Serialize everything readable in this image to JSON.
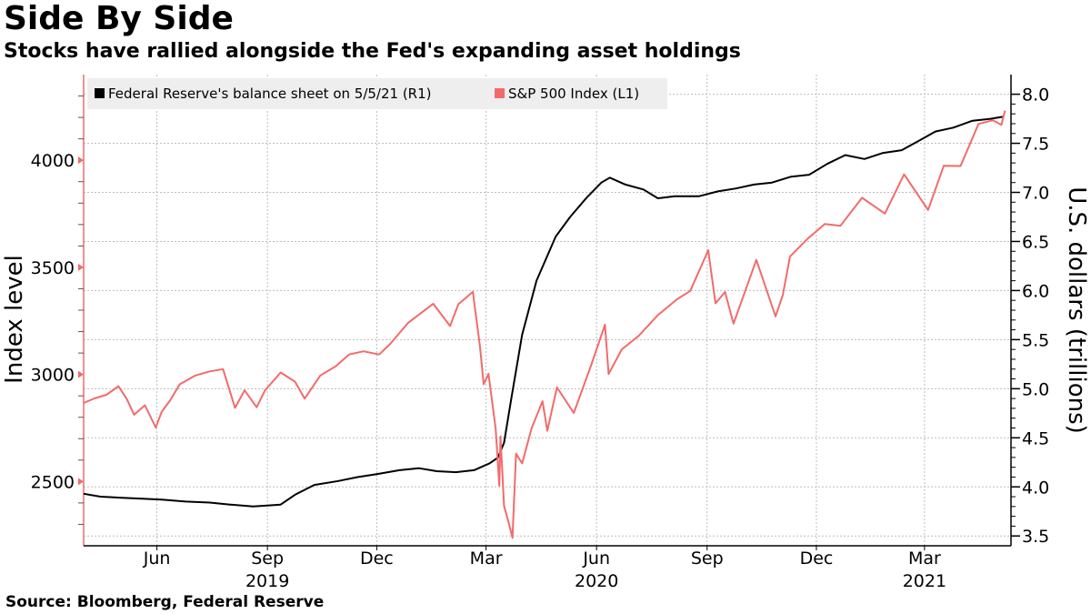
{
  "title": "Side By Side",
  "subtitle": "Stocks have rallied alongside the Fed's expanding asset holdings",
  "source": "Source: Bloomberg, Federal Reserve",
  "colors": {
    "sp500": "#f26b6b",
    "fed": "#000000",
    "grid": "#bdbdbd",
    "legend_bg": "#eeeeee"
  },
  "chart_data": {
    "type": "line",
    "left_axis": {
      "label": "Index level",
      "range": [
        2200,
        4400
      ],
      "ticks": [
        2500,
        3000,
        3500,
        4000
      ]
    },
    "right_axis": {
      "label": "U.S. dollars (trillions)",
      "range": [
        3.4,
        8.2
      ],
      "ticks": [
        "3.5",
        "4.0",
        "4.5",
        "5.0",
        "5.5",
        "6.0",
        "6.5",
        "7.0",
        "7.5",
        "8.0"
      ]
    },
    "x_range": [
      "2019-04-01",
      "2021-05-12"
    ],
    "x_month_labels": [
      {
        "date": "2019-06-01",
        "label": "Jun"
      },
      {
        "date": "2019-09-01",
        "label": "Sep"
      },
      {
        "date": "2019-12-01",
        "label": "Dec"
      },
      {
        "date": "2020-03-01",
        "label": "Mar"
      },
      {
        "date": "2020-06-01",
        "label": "Jun"
      },
      {
        "date": "2020-09-01",
        "label": "Sep"
      },
      {
        "date": "2020-12-01",
        "label": "Dec"
      },
      {
        "date": "2021-03-01",
        "label": "Mar"
      }
    ],
    "x_year_labels": [
      {
        "date": "2019-09-01",
        "label": "2019"
      },
      {
        "date": "2020-06-01",
        "label": "2020"
      },
      {
        "date": "2021-03-01",
        "label": "2021"
      }
    ],
    "legend": {
      "position": "top-left"
    },
    "grid": true,
    "series": [
      {
        "name": "Federal Reserve's balance sheet on 5/5/21 (R1)",
        "axis": "right",
        "points": [
          [
            "2019-04-01",
            3.93
          ],
          [
            "2019-04-15",
            3.9
          ],
          [
            "2019-05-01",
            3.89
          ],
          [
            "2019-05-20",
            3.88
          ],
          [
            "2019-06-05",
            3.87
          ],
          [
            "2019-06-25",
            3.85
          ],
          [
            "2019-07-15",
            3.84
          ],
          [
            "2019-08-01",
            3.82
          ],
          [
            "2019-08-20",
            3.8
          ],
          [
            "2019-09-01",
            3.81
          ],
          [
            "2019-09-12",
            3.82
          ],
          [
            "2019-09-24",
            3.92
          ],
          [
            "2019-10-10",
            4.02
          ],
          [
            "2019-10-30",
            4.06
          ],
          [
            "2019-11-15",
            4.1
          ],
          [
            "2019-12-01",
            4.13
          ],
          [
            "2019-12-20",
            4.17
          ],
          [
            "2020-01-05",
            4.19
          ],
          [
            "2020-01-20",
            4.16
          ],
          [
            "2020-02-05",
            4.15
          ],
          [
            "2020-02-20",
            4.17
          ],
          [
            "2020-03-04",
            4.24
          ],
          [
            "2020-03-11",
            4.3
          ],
          [
            "2020-03-16",
            4.45
          ],
          [
            "2020-03-22",
            4.9
          ],
          [
            "2020-03-31",
            5.55
          ],
          [
            "2020-04-12",
            6.1
          ],
          [
            "2020-04-28",
            6.55
          ],
          [
            "2020-05-10",
            6.75
          ],
          [
            "2020-05-24",
            6.95
          ],
          [
            "2020-06-05",
            7.1
          ],
          [
            "2020-06-12",
            7.15
          ],
          [
            "2020-06-25",
            7.08
          ],
          [
            "2020-07-10",
            7.03
          ],
          [
            "2020-07-22",
            6.94
          ],
          [
            "2020-08-05",
            6.96
          ],
          [
            "2020-08-25",
            6.96
          ],
          [
            "2020-09-10",
            7.01
          ],
          [
            "2020-09-25",
            7.04
          ],
          [
            "2020-10-10",
            7.08
          ],
          [
            "2020-10-25",
            7.1
          ],
          [
            "2020-11-10",
            7.16
          ],
          [
            "2020-11-25",
            7.18
          ],
          [
            "2020-12-10",
            7.29
          ],
          [
            "2020-12-25",
            7.38
          ],
          [
            "2021-01-10",
            7.34
          ],
          [
            "2021-01-25",
            7.4
          ],
          [
            "2021-02-10",
            7.43
          ],
          [
            "2021-02-25",
            7.53
          ],
          [
            "2021-03-10",
            7.62
          ],
          [
            "2021-03-25",
            7.66
          ],
          [
            "2021-04-10",
            7.73
          ],
          [
            "2021-04-25",
            7.75
          ],
          [
            "2021-05-05",
            7.77
          ]
        ]
      },
      {
        "name": "S&P 500 Index (L1)",
        "axis": "left",
        "points": [
          [
            "2019-04-01",
            2867
          ],
          [
            "2019-04-10",
            2888
          ],
          [
            "2019-04-20",
            2905
          ],
          [
            "2019-04-30",
            2945
          ],
          [
            "2019-05-07",
            2884
          ],
          [
            "2019-05-13",
            2812
          ],
          [
            "2019-05-22",
            2856
          ],
          [
            "2019-05-31",
            2752
          ],
          [
            "2019-06-05",
            2826
          ],
          [
            "2019-06-12",
            2879
          ],
          [
            "2019-06-20",
            2954
          ],
          [
            "2019-07-03",
            2995
          ],
          [
            "2019-07-15",
            3014
          ],
          [
            "2019-07-26",
            3025
          ],
          [
            "2019-08-05",
            2844
          ],
          [
            "2019-08-13",
            2926
          ],
          [
            "2019-08-23",
            2847
          ],
          [
            "2019-08-30",
            2926
          ],
          [
            "2019-09-12",
            3009
          ],
          [
            "2019-09-24",
            2966
          ],
          [
            "2019-10-02",
            2887
          ],
          [
            "2019-10-15",
            2995
          ],
          [
            "2019-10-28",
            3039
          ],
          [
            "2019-11-08",
            3093
          ],
          [
            "2019-11-20",
            3108
          ],
          [
            "2019-12-03",
            3093
          ],
          [
            "2019-12-12",
            3141
          ],
          [
            "2019-12-27",
            3240
          ],
          [
            "2020-01-17",
            3330
          ],
          [
            "2020-01-31",
            3226
          ],
          [
            "2020-02-07",
            3328
          ],
          [
            "2020-02-19",
            3386
          ],
          [
            "2020-02-25",
            3128
          ],
          [
            "2020-02-28",
            2954
          ],
          [
            "2020-03-03",
            3003
          ],
          [
            "2020-03-09",
            2746
          ],
          [
            "2020-03-12",
            2480
          ],
          [
            "2020-03-13",
            2711
          ],
          [
            "2020-03-16",
            2386
          ],
          [
            "2020-03-20",
            2305
          ],
          [
            "2020-03-23",
            2237
          ],
          [
            "2020-03-26",
            2630
          ],
          [
            "2020-03-31",
            2585
          ],
          [
            "2020-04-08",
            2750
          ],
          [
            "2020-04-17",
            2875
          ],
          [
            "2020-04-21",
            2737
          ],
          [
            "2020-04-29",
            2940
          ],
          [
            "2020-05-13",
            2820
          ],
          [
            "2020-05-27",
            3036
          ],
          [
            "2020-06-08",
            3232
          ],
          [
            "2020-06-11",
            3002
          ],
          [
            "2020-06-22",
            3117
          ],
          [
            "2020-07-06",
            3180
          ],
          [
            "2020-07-22",
            3277
          ],
          [
            "2020-08-07",
            3351
          ],
          [
            "2020-08-18",
            3390
          ],
          [
            "2020-09-02",
            3580
          ],
          [
            "2020-09-08",
            3332
          ],
          [
            "2020-09-16",
            3385
          ],
          [
            "2020-09-23",
            3237
          ],
          [
            "2020-10-12",
            3535
          ],
          [
            "2020-10-28",
            3271
          ],
          [
            "2020-11-03",
            3370
          ],
          [
            "2020-11-09",
            3550
          ],
          [
            "2020-11-24",
            3635
          ],
          [
            "2020-12-08",
            3702
          ],
          [
            "2020-12-21",
            3694
          ],
          [
            "2021-01-08",
            3825
          ],
          [
            "2021-01-27",
            3751
          ],
          [
            "2021-02-12",
            3934
          ],
          [
            "2021-03-04",
            3768
          ],
          [
            "2021-03-17",
            3974
          ],
          [
            "2021-03-31",
            3973
          ],
          [
            "2021-04-15",
            4170
          ],
          [
            "2021-04-27",
            4187
          ],
          [
            "2021-05-04",
            4165
          ],
          [
            "2021-05-07",
            4232
          ]
        ]
      }
    ]
  }
}
